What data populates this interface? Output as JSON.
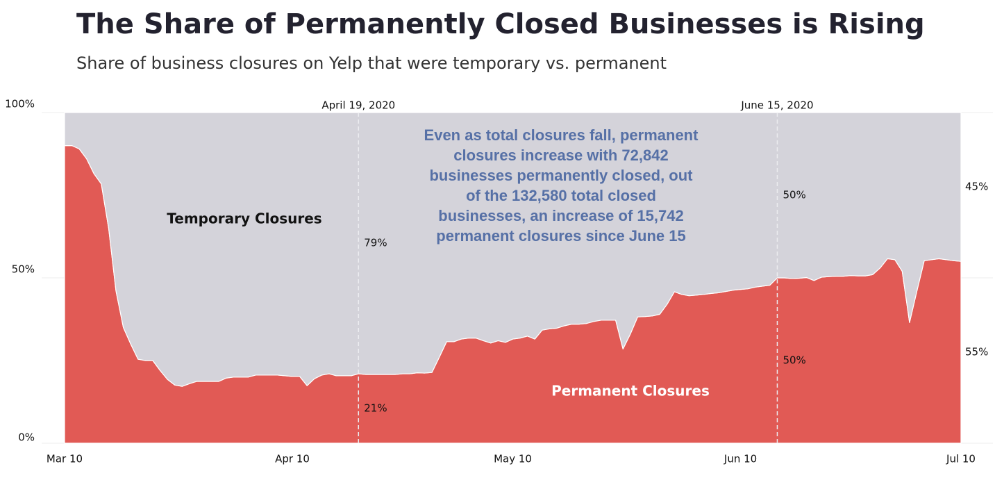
{
  "chart_data": {
    "type": "stacked-area",
    "title": "The Share of Permanently Closed Businesses is Rising",
    "subtitle": "Share of business closures on Yelp that were temporary vs. permanent",
    "x": [
      "Mar 10",
      "Mar 11",
      "Mar 12",
      "Mar 13",
      "Mar 14",
      "Mar 15",
      "Mar 16",
      "Mar 17",
      "Mar 18",
      "Mar 19",
      "Mar 20",
      "Mar 21",
      "Mar 22",
      "Mar 23",
      "Mar 24",
      "Mar 25",
      "Mar 26",
      "Mar 27",
      "Mar 28",
      "Mar 29",
      "Mar 30",
      "Mar 31",
      "Apr 1",
      "Apr 2",
      "Apr 3",
      "Apr 4",
      "Apr 5",
      "Apr 6",
      "Apr 7",
      "Apr 8",
      "Apr 9",
      "Apr 10",
      "Apr 11",
      "Apr 12",
      "Apr 13",
      "Apr 14",
      "Apr 15",
      "Apr 16",
      "Apr 17",
      "Apr 18",
      "Apr 19",
      "Apr 20",
      "Apr 21",
      "Apr 22",
      "Apr 23",
      "Apr 24",
      "Apr 25",
      "Apr 26",
      "Apr 27",
      "Apr 28",
      "Apr 29",
      "Apr 30",
      "May 1",
      "May 2",
      "May 3",
      "May 4",
      "May 5",
      "May 6",
      "May 7",
      "May 8",
      "May 9",
      "May 10",
      "May 11",
      "May 12",
      "May 13",
      "May 14",
      "May 15",
      "May 16",
      "May 17",
      "May 18",
      "May 19",
      "May 20",
      "May 21",
      "May 22",
      "May 23",
      "May 24",
      "May 25",
      "May 26",
      "May 27",
      "May 28",
      "May 29",
      "May 30",
      "May 31",
      "Jun 1",
      "Jun 2",
      "Jun 3",
      "Jun 4",
      "Jun 5",
      "Jun 6",
      "Jun 7",
      "Jun 8",
      "Jun 9",
      "Jun 10",
      "Jun 11",
      "Jun 12",
      "Jun 13",
      "Jun 14",
      "Jun 15",
      "Jun 16",
      "Jun 17",
      "Jun 18",
      "Jun 19",
      "Jun 20",
      "Jun 21",
      "Jun 22",
      "Jun 23",
      "Jun 24",
      "Jun 25",
      "Jun 26",
      "Jun 27",
      "Jun 28",
      "Jun 29",
      "Jun 30",
      "Jul 1",
      "Jul 2",
      "Jul 3",
      "Jul 4",
      "Jul 5",
      "Jul 6",
      "Jul 7",
      "Jul 8",
      "Jul 9",
      "Jul 10"
    ],
    "series": [
      {
        "name": "Permanent Closures",
        "color": "#e15a55",
        "values": [
          90,
          90,
          89,
          86,
          81.5,
          78.4,
          65,
          46,
          35,
          30,
          25.4,
          25,
          25,
          22,
          19.3,
          17.6,
          17.2,
          18,
          18.7,
          18.7,
          18.7,
          18.7,
          19.7,
          20,
          20,
          20,
          20.6,
          20.6,
          20.6,
          20.6,
          20.4,
          20.2,
          20.2,
          17.4,
          19.5,
          20.6,
          21,
          20.4,
          20.4,
          20.4,
          21,
          20.8,
          20.8,
          20.8,
          20.8,
          20.8,
          21,
          21,
          21.3,
          21.2,
          21.4,
          26,
          30.7,
          30.7,
          31.5,
          31.8,
          31.8,
          31,
          30.3,
          31,
          30.5,
          31.5,
          31.8,
          32.4,
          31.5,
          34.2,
          34.6,
          34.8,
          35.5,
          36,
          36,
          36.2,
          36.8,
          37.2,
          37.2,
          37.2,
          28.5,
          33,
          38.2,
          38.3,
          38.5,
          39,
          42,
          45.8,
          45,
          44.6,
          44.8,
          45,
          45.3,
          45.5,
          45.9,
          46.3,
          46.5,
          46.7,
          47.2,
          47.5,
          47.8,
          50,
          50,
          49.8,
          49.9,
          50.1,
          49.2,
          50.2,
          50.4,
          50.5,
          50.5,
          50.7,
          50.6,
          50.6,
          51,
          53,
          55.8,
          55.5,
          52,
          36.5,
          46,
          55.2,
          55.5,
          55.8,
          55.5,
          55.2,
          55
        ]
      },
      {
        "name": "Temporary Closures",
        "color": "#d4d3da",
        "values": [
          10,
          10,
          11,
          14,
          18.5,
          21.6,
          35,
          54,
          65,
          70,
          74.6,
          75,
          75,
          78,
          80.7,
          82.4,
          82.8,
          82,
          81.3,
          81.3,
          81.3,
          81.3,
          80.3,
          80,
          80,
          80,
          79.4,
          79.4,
          79.4,
          79.4,
          79.6,
          79.8,
          79.8,
          82.6,
          80.5,
          79.4,
          79,
          79.6,
          79.6,
          79.6,
          79,
          79.2,
          79.2,
          79.2,
          79.2,
          79.2,
          79,
          79,
          78.7,
          78.8,
          78.6,
          74,
          69.3,
          69.3,
          68.5,
          68.2,
          68.2,
          69,
          69.7,
          69,
          69.5,
          68.5,
          68.2,
          67.6,
          68.5,
          65.8,
          65.4,
          65.2,
          64.5,
          64,
          64,
          63.8,
          63.2,
          62.8,
          62.8,
          62.8,
          71.5,
          67,
          61.8,
          61.7,
          61.5,
          61,
          58,
          54.2,
          55,
          55.4,
          55.2,
          55,
          54.7,
          54.5,
          54.1,
          53.7,
          53.5,
          53.3,
          52.8,
          52.5,
          52.2,
          50,
          50,
          50.2,
          50.1,
          49.9,
          50.8,
          49.8,
          49.6,
          49.5,
          49.5,
          49.3,
          49.4,
          49.4,
          49,
          47,
          44.2,
          44.5,
          48,
          63.5,
          54,
          44.8,
          44.5,
          44.2,
          44.5,
          44.8,
          45
        ]
      }
    ],
    "ylim": [
      0,
      100
    ],
    "yticks": [
      {
        "value": 0,
        "label": "0%"
      },
      {
        "value": 50,
        "label": "50%"
      },
      {
        "value": 100,
        "label": "100%"
      }
    ],
    "xticks": [
      "Mar 10",
      "Apr 10",
      "May 10",
      "Jun 10",
      "Jul 10"
    ],
    "grid": true,
    "markers": [
      {
        "label": "April 19, 2020",
        "values": [
          21,
          79
        ],
        "value_labels": [
          "21%",
          "79%"
        ]
      },
      {
        "label": "June 15, 2020",
        "values": [
          50,
          50
        ],
        "value_labels": [
          "50%",
          "50%"
        ]
      }
    ],
    "end_labels": {
      "values": [
        55,
        45
      ],
      "value_labels": [
        "55%",
        "45%"
      ]
    },
    "annotation": [
      "Even as total closures fall, permanent",
      "closures increase with 72,842",
      "businesses permanently closed, out",
      "of the 132,580 total closed",
      "businesses, an increase of 15,742",
      "permanent closures since June 15"
    ]
  }
}
